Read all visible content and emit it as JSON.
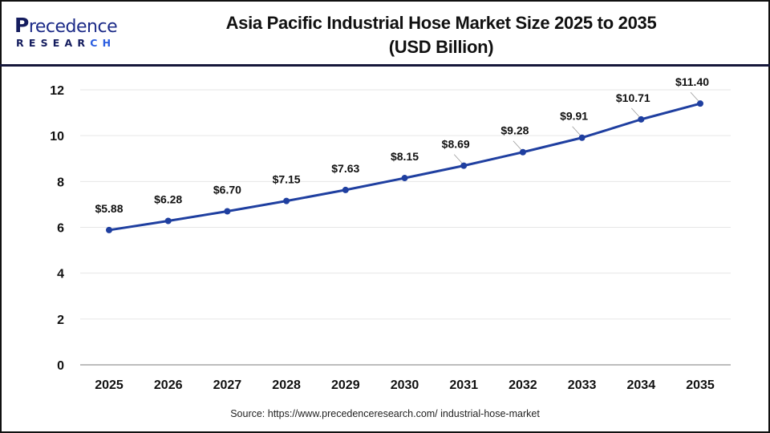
{
  "header": {
    "logo": {
      "line1_initial": "P",
      "line1_rest": "recedence",
      "line2_main": "RESEAR",
      "line2_accent": "CH"
    },
    "title_line1": "Asia Pacific Industrial Hose Market Size 2025 to 2035",
    "title_line2": "(USD Billion)"
  },
  "footer": {
    "source": "Source: https://www.precedenceresearch.com/ industrial-hose-market"
  },
  "colors": {
    "line": "#1f3fa0",
    "grid": "#e6e6e6",
    "axis": "#bdbdbd",
    "text": "#111111"
  },
  "chart_data": {
    "type": "line",
    "title": "Asia Pacific Industrial Hose Market Size 2025 to 2035 (USD Billion)",
    "xlabel": "",
    "ylabel": "",
    "categories": [
      "2025",
      "2026",
      "2027",
      "2028",
      "2029",
      "2030",
      "2031",
      "2032",
      "2033",
      "2034",
      "2035"
    ],
    "series": [
      {
        "name": "Market Size (USD Billion)",
        "values": [
          5.88,
          6.28,
          6.7,
          7.15,
          7.63,
          8.15,
          8.69,
          9.28,
          9.91,
          10.71,
          11.4
        ],
        "labels": [
          "$5.88",
          "$6.28",
          "$6.70",
          "$7.15",
          "$7.63",
          "$8.15",
          "$8.69",
          "$9.28",
          "$9.91",
          "$10.71",
          "$11.40"
        ]
      }
    ],
    "ylim": [
      0,
      12
    ],
    "yticks": [
      0,
      2,
      4,
      6,
      8,
      10,
      12
    ],
    "grid": true,
    "legend": "none"
  }
}
